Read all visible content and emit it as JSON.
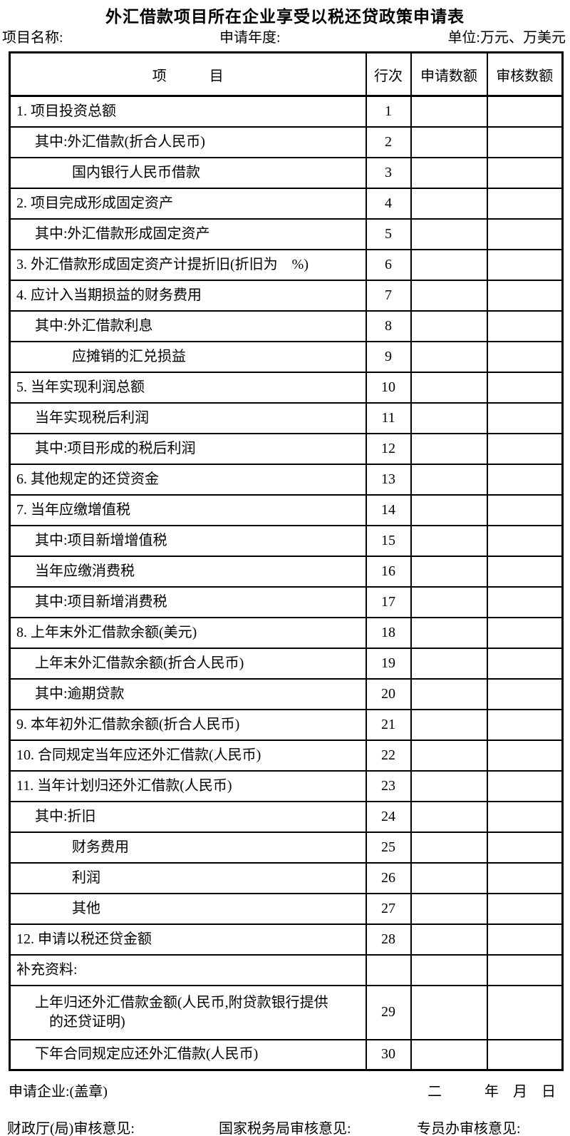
{
  "title": "外汇借款项目所在企业享受以税还贷政策申请表",
  "meta": {
    "project_name_label": "项目名称:",
    "apply_year_label": "申请年度:",
    "unit_label": "单位:万元、万美元"
  },
  "table": {
    "headers": {
      "item": "项　　　目",
      "line_no": "行次",
      "applied_amount": "申请数额",
      "reviewed_amount": "审核数额"
    },
    "rows": [
      {
        "label": "1. 项目投资总额",
        "indent": 0,
        "line": "1",
        "applied": "",
        "reviewed": ""
      },
      {
        "label": "其中:外汇借款(折合人民币)",
        "indent": 1,
        "line": "2",
        "applied": "",
        "reviewed": ""
      },
      {
        "label": "国内银行人民币借款",
        "indent": 2,
        "line": "3",
        "applied": "",
        "reviewed": ""
      },
      {
        "label": "2. 项目完成形成固定资产",
        "indent": 0,
        "line": "4",
        "applied": "",
        "reviewed": ""
      },
      {
        "label": "其中:外汇借款形成固定资产",
        "indent": 1,
        "line": "5",
        "applied": "",
        "reviewed": ""
      },
      {
        "label": "3. 外汇借款形成固定资产计提折旧(折旧为　%)",
        "indent": 0,
        "line": "6",
        "applied": "",
        "reviewed": ""
      },
      {
        "label": "4. 应计入当期损益的财务费用",
        "indent": 0,
        "line": "7",
        "applied": "",
        "reviewed": ""
      },
      {
        "label": "其中:外汇借款利息",
        "indent": 1,
        "line": "8",
        "applied": "",
        "reviewed": ""
      },
      {
        "label": "应摊销的汇兑损益",
        "indent": 2,
        "line": "9",
        "applied": "",
        "reviewed": ""
      },
      {
        "label": "5. 当年实现利润总额",
        "indent": 0,
        "line": "10",
        "applied": "",
        "reviewed": ""
      },
      {
        "label": "当年实现税后利润",
        "indent": 1,
        "line": "11",
        "applied": "",
        "reviewed": ""
      },
      {
        "label": "其中:项目形成的税后利润",
        "indent": 1,
        "line": "12",
        "applied": "",
        "reviewed": ""
      },
      {
        "label": "6. 其他规定的还贷资金",
        "indent": 0,
        "line": "13",
        "applied": "",
        "reviewed": ""
      },
      {
        "label": "7. 当年应缴增值税",
        "indent": 0,
        "line": "14",
        "applied": "",
        "reviewed": ""
      },
      {
        "label": "其中:项目新增增值税",
        "indent": 1,
        "line": "15",
        "applied": "",
        "reviewed": ""
      },
      {
        "label": "当年应缴消费税",
        "indent": 1,
        "line": "16",
        "applied": "",
        "reviewed": ""
      },
      {
        "label": "其中:项目新增消费税",
        "indent": 1,
        "line": "17",
        "applied": "",
        "reviewed": ""
      },
      {
        "label": "8. 上年末外汇借款余额(美元)",
        "indent": 0,
        "line": "18",
        "applied": "",
        "reviewed": ""
      },
      {
        "label": "上年末外汇借款余额(折合人民币)",
        "indent": 1,
        "line": "19",
        "applied": "",
        "reviewed": ""
      },
      {
        "label": "其中:逾期贷款",
        "indent": 1,
        "line": "20",
        "applied": "",
        "reviewed": ""
      },
      {
        "label": "9. 本年初外汇借款余额(折合人民币)",
        "indent": 0,
        "line": "21",
        "applied": "",
        "reviewed": ""
      },
      {
        "label": "10. 合同规定当年应还外汇借款(人民币)",
        "indent": 0,
        "line": "22",
        "applied": "",
        "reviewed": ""
      },
      {
        "label": "11. 当年计划归还外汇借款(人民币)",
        "indent": 0,
        "line": "23",
        "applied": "",
        "reviewed": ""
      },
      {
        "label": "其中:折旧",
        "indent": 1,
        "line": "24",
        "applied": "",
        "reviewed": ""
      },
      {
        "label": "财务费用",
        "indent": 2,
        "line": "25",
        "applied": "",
        "reviewed": ""
      },
      {
        "label": "利润",
        "indent": 2,
        "line": "26",
        "applied": "",
        "reviewed": ""
      },
      {
        "label": "其他",
        "indent": 2,
        "line": "27",
        "applied": "",
        "reviewed": ""
      },
      {
        "label": "12. 申请以税还贷金额",
        "indent": 0,
        "line": "28",
        "applied": "",
        "reviewed": ""
      },
      {
        "label": "补充资料:",
        "indent": 0,
        "line": "",
        "applied": "",
        "reviewed": ""
      },
      {
        "label": "上年归还外汇借款金额(人民币,附贷款银行提供",
        "label2": "的还贷证明)",
        "indent": 1,
        "line": "29",
        "applied": "",
        "reviewed": "",
        "tall": true
      },
      {
        "label": "下年合同规定应还外汇借款(人民币)",
        "indent": 1,
        "line": "30",
        "applied": "",
        "reviewed": ""
      }
    ]
  },
  "footer": {
    "applicant_label": "申请企业:(盖章)",
    "date_line": "二　　　年　月　日",
    "finance_review_label": "财政厅(局)审核意见:",
    "tax_review_label": "国家税务局审核意见:",
    "commissioner_review_label": "专员办审核意见:"
  }
}
